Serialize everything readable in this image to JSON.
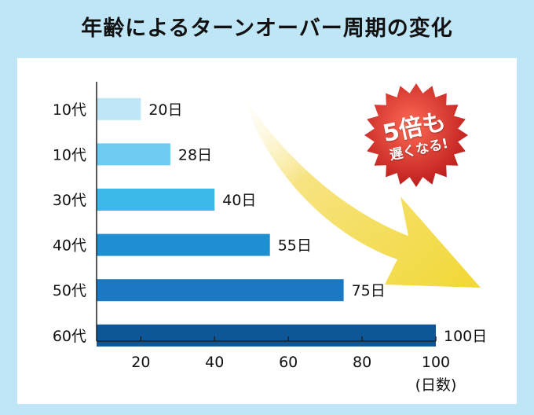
{
  "title": "年齢によるターンオーバー周期の変化",
  "badge": {
    "line1": "5倍も",
    "line2": "遅くなる!"
  },
  "colors": {
    "background": "#bfe6f7",
    "badge": "#d9342b",
    "arrow": "#f3dc3c",
    "bars": [
      "#bfe6f7",
      "#6fcbf2",
      "#3cb9e8",
      "#1e8fd0",
      "#1a79c2",
      "#0d5796"
    ]
  },
  "chart_data": {
    "type": "bar",
    "orientation": "horizontal",
    "categories": [
      "10代",
      "10代",
      "30代",
      "40代",
      "50代",
      "60代"
    ],
    "values": [
      20,
      28,
      40,
      55,
      75,
      100
    ],
    "data_labels": [
      "20日",
      "28日",
      "40日",
      "55日",
      "75日",
      "100日"
    ],
    "xticks": [
      20,
      40,
      60,
      80,
      100
    ],
    "xlim": [
      8,
      100
    ],
    "xlabel": "(日数)",
    "grid": false
  }
}
